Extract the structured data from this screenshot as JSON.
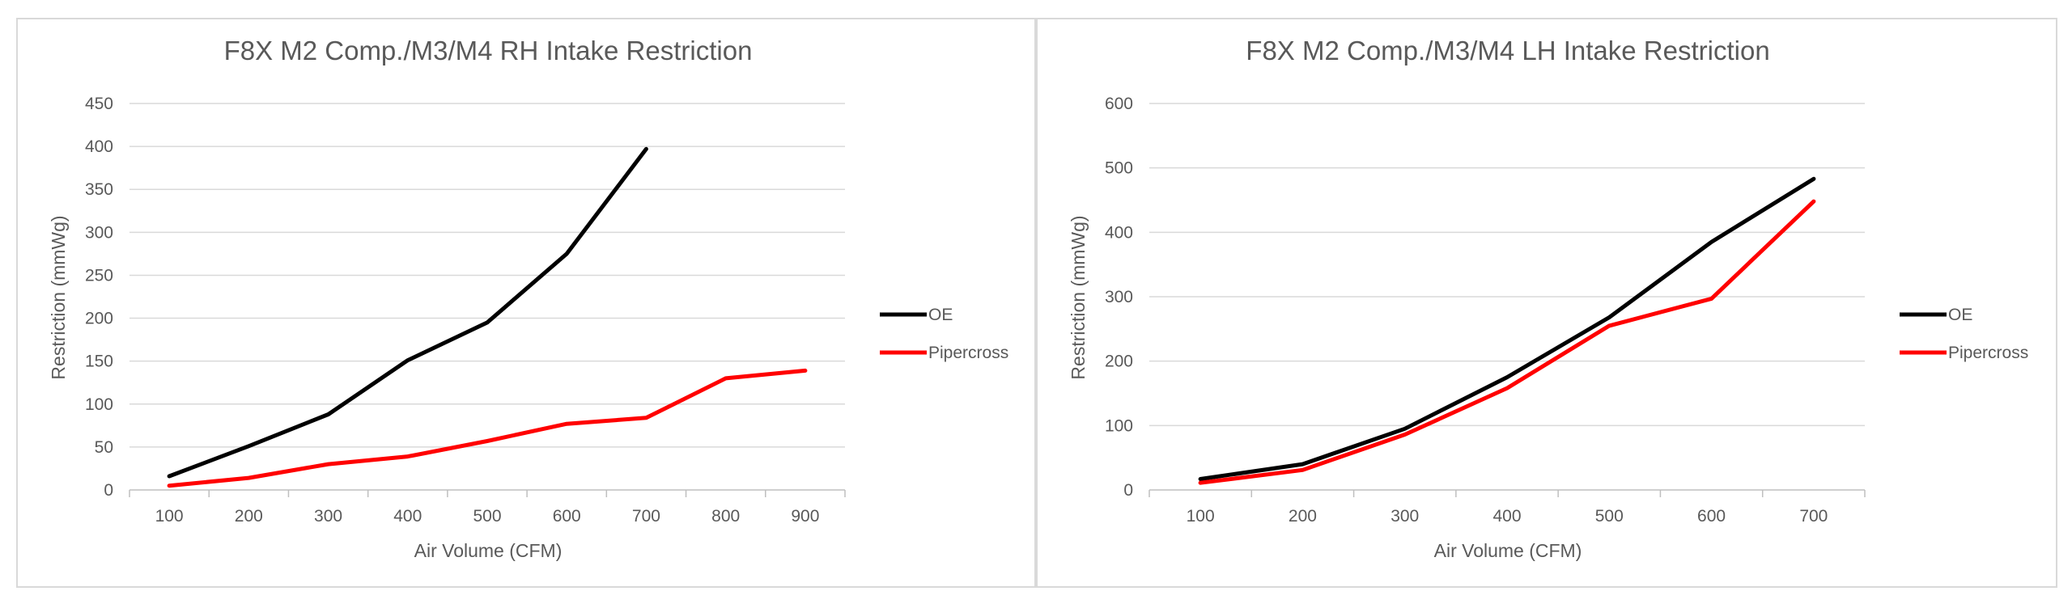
{
  "chart_data": [
    {
      "type": "line",
      "title": "F8X M2 Comp./M3/M4 RH Intake Restriction",
      "xlabel": "Air Volume (CFM)",
      "ylabel": "Restriction (mmWg)",
      "categories": [
        "100",
        "200",
        "300",
        "400",
        "500",
        "600",
        "700",
        "800",
        "900"
      ],
      "ylim": [
        0,
        450
      ],
      "yticks": [
        "0",
        "50",
        "100",
        "150",
        "200",
        "250",
        "300",
        "350",
        "400",
        "450"
      ],
      "grid": true,
      "legend": "right",
      "series": [
        {
          "name": "OE",
          "color": "#000000",
          "values": [
            16,
            51,
            88,
            151,
            195,
            275,
            397,
            null,
            null
          ]
        },
        {
          "name": "Pipercross",
          "color": "#ff0000",
          "values": [
            5,
            14,
            30,
            39,
            57,
            77,
            84,
            130,
            139
          ]
        }
      ]
    },
    {
      "type": "line",
      "title": "F8X M2 Comp./M3/M4 LH Intake Restriction",
      "xlabel": "Air Volume (CFM)",
      "ylabel": "Restriction (mmWg)",
      "categories": [
        "100",
        "200",
        "300",
        "400",
        "500",
        "600",
        "700"
      ],
      "ylim": [
        0,
        600
      ],
      "yticks": [
        "0",
        "100",
        "200",
        "300",
        "400",
        "500",
        "600"
      ],
      "grid": true,
      "legend": "right",
      "series": [
        {
          "name": "OE",
          "color": "#000000",
          "values": [
            17,
            40,
            95,
            175,
            268,
            385,
            483
          ]
        },
        {
          "name": "Pipercross",
          "color": "#ff0000",
          "values": [
            11,
            31,
            86,
            158,
            255,
            297,
            448
          ]
        }
      ]
    }
  ]
}
